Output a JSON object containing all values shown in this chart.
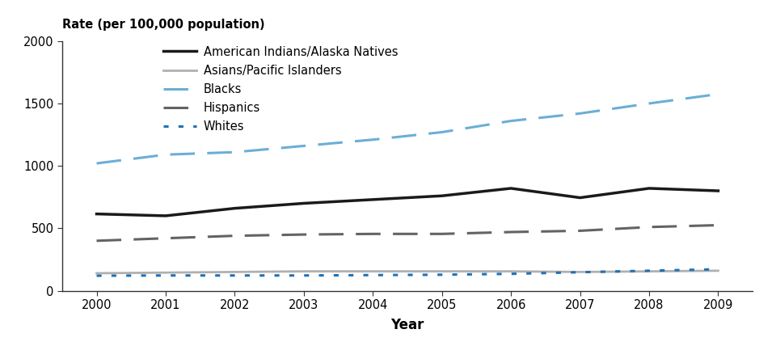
{
  "years": [
    2000,
    2001,
    2002,
    2003,
    2004,
    2005,
    2006,
    2007,
    2008,
    2009
  ],
  "american_indians": [
    615,
    600,
    660,
    700,
    730,
    760,
    820,
    745,
    820,
    800
  ],
  "asians": [
    140,
    145,
    150,
    155,
    155,
    155,
    155,
    150,
    155,
    160
  ],
  "blacks": [
    1020,
    1090,
    1110,
    1160,
    1210,
    1270,
    1360,
    1420,
    1500,
    1575
  ],
  "hispanics": [
    400,
    420,
    440,
    450,
    455,
    455,
    470,
    480,
    510,
    525
  ],
  "whites": [
    120,
    122,
    122,
    122,
    125,
    128,
    135,
    148,
    160,
    172
  ],
  "colors": {
    "american_indians": "#1a1a1a",
    "asians": "#b0b0b0",
    "blacks": "#6baed6",
    "hispanics": "#636363",
    "whites": "#2171b5"
  },
  "ylabel": "Rate (per 100,000 population)",
  "xlabel": "Year",
  "ylim": [
    0,
    2000
  ],
  "yticks": [
    0,
    500,
    1000,
    1500,
    2000
  ],
  "legend_labels": [
    "American Indians/Alaska Natives",
    "Asians/Pacific Islanders",
    "Blacks",
    "Hispanics",
    "Whites"
  ],
  "background_color": "#ffffff"
}
